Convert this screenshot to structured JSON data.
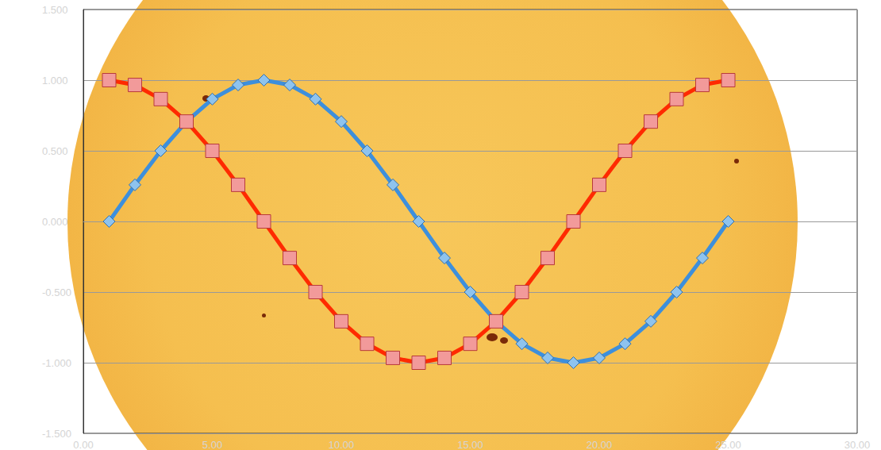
{
  "chart_data": {
    "type": "line",
    "x": [
      1,
      2,
      3,
      4,
      5,
      6,
      7,
      8,
      9,
      10,
      11,
      12,
      13,
      14,
      15,
      16,
      17,
      18,
      19,
      20,
      21,
      22,
      23,
      24,
      25
    ],
    "series": [
      {
        "color": "#3d8fdc",
        "marker": "diamond",
        "line_style": "solid",
        "values": [
          0,
          0.259,
          0.5,
          0.707,
          0.866,
          0.966,
          1,
          0.966,
          0.866,
          0.707,
          0.5,
          0.259,
          0,
          -0.259,
          -0.5,
          -0.707,
          -0.866,
          -0.966,
          -1,
          -0.966,
          -0.866,
          -0.707,
          -0.5,
          -0.259,
          0
        ]
      },
      {
        "color": "#ff2a00",
        "marker": "square",
        "line_style": "solid",
        "values": [
          1,
          0.966,
          0.866,
          0.707,
          0.5,
          0.259,
          0,
          -0.259,
          -0.5,
          -0.707,
          -0.866,
          -0.966,
          -1,
          -0.966,
          -0.866,
          -0.707,
          -0.5,
          -0.259,
          0,
          0.259,
          0.5,
          0.707,
          0.866,
          0.966,
          1
        ]
      }
    ],
    "xlim": [
      0,
      30
    ],
    "xticks": [
      {
        "value": 0,
        "label": "0.00"
      },
      {
        "value": 5,
        "label": "5.00"
      },
      {
        "value": 10,
        "label": "10.00"
      },
      {
        "value": 15,
        "label": "15.00"
      },
      {
        "value": 20,
        "label": "20.00"
      },
      {
        "value": 25,
        "label": "25.00"
      },
      {
        "value": 30,
        "label": "30.00"
      }
    ],
    "ylim": [
      -1.5,
      1.5
    ],
    "yticks": [
      {
        "value": -1.5,
        "label": "-1.500"
      },
      {
        "value": -1,
        "label": "-1.000"
      },
      {
        "value": -0.5,
        "label": "-0.500"
      },
      {
        "value": 0,
        "label": "0.000"
      },
      {
        "value": 0.5,
        "label": "0.500"
      },
      {
        "value": 1,
        "label": "1.000"
      },
      {
        "value": 1.5,
        "label": "1.500"
      }
    ],
    "grid": true
  }
}
